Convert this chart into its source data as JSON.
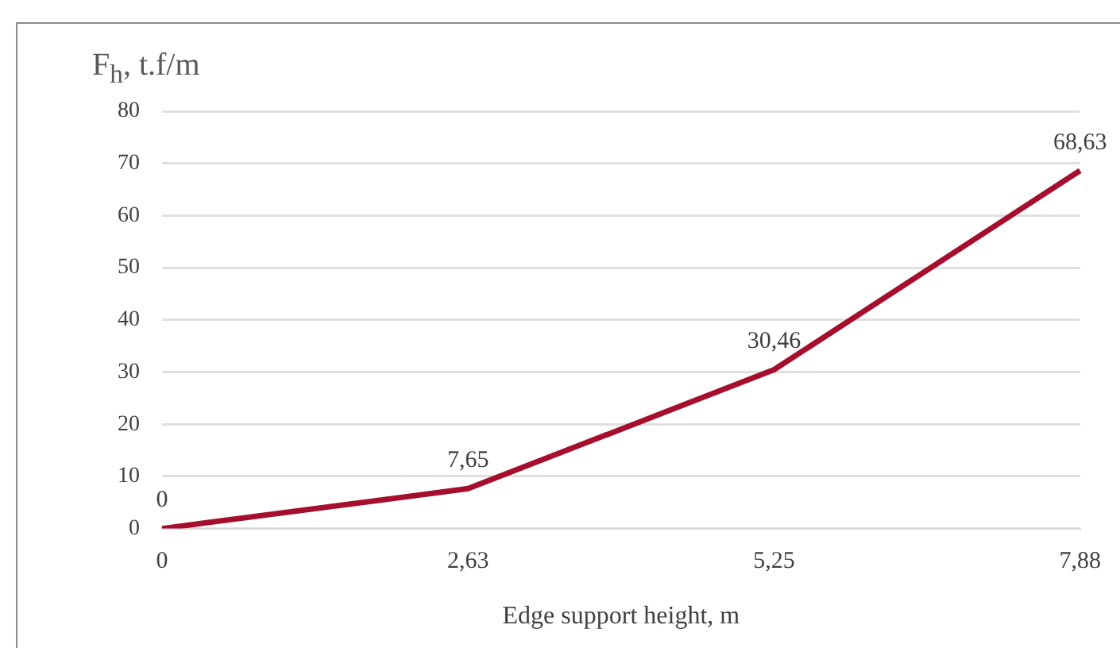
{
  "chart_data": {
    "type": "line",
    "ylabel": "F$_{h}$, t.f/m",
    "xlabel": "Edge support height, m",
    "categories": [
      "0",
      "2,63",
      "5,25",
      "7,88"
    ],
    "series": [
      {
        "color": "#a50f2d",
        "values": [
          0,
          7.65,
          30.46,
          68.63
        ],
        "value_labels": [
          "0",
          "7,65",
          "30,46",
          "68,63"
        ]
      }
    ],
    "ylim": [
      0,
      80
    ],
    "yticks": [
      0,
      10,
      20,
      30,
      40,
      50,
      60,
      70,
      80
    ],
    "grid": "y",
    "legend": false,
    "marker": "none",
    "line_style": "solid"
  }
}
